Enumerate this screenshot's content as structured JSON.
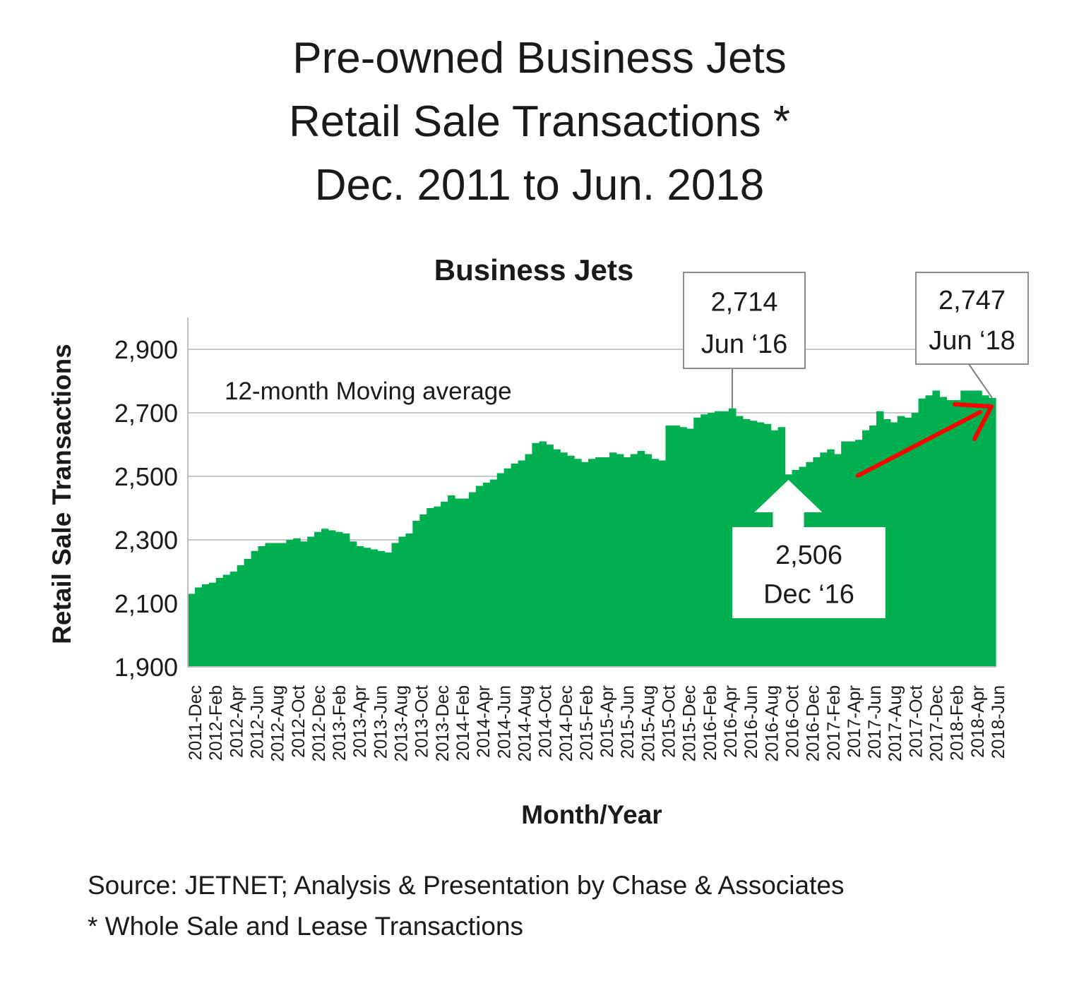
{
  "title_lines": [
    "Pre-owned Business Jets",
    "Retail Sale Transactions *",
    "Dec. 2011 to Jun. 2018"
  ],
  "footer": {
    "source": "Source: JETNET; Analysis & Presentation by Chase & Associates",
    "note": "* Whole Sale and Lease Transactions"
  },
  "chart_data": {
    "type": "area",
    "title": "Business Jets",
    "subtitle": "12-month Moving average",
    "xlabel": "Month/Year",
    "ylabel": "Retail Sale Transactions",
    "ylim": [
      1900,
      3000
    ],
    "yticks": [
      1900,
      2100,
      2300,
      2500,
      2700,
      2900
    ],
    "ytick_labels": [
      "1,900",
      "2,100",
      "2,300",
      "2,500",
      "2,700",
      "2,900"
    ],
    "grid": true,
    "fill_color": "#00b050",
    "tick_labels": [
      "2011-Dec",
      "2012-Feb",
      "2012-Apr",
      "2012-Jun",
      "2012-Aug",
      "2012-Oct",
      "2012-Dec",
      "2013-Feb",
      "2013-Apr",
      "2013-Jun",
      "2013-Aug",
      "2013-Oct",
      "2013-Dec",
      "2014-Feb",
      "2014-Apr",
      "2014-Jun",
      "2014-Aug",
      "2014-Oct",
      "2014-Dec",
      "2015-Feb",
      "2015-Apr",
      "2015-Jun",
      "2015-Aug",
      "2015-Oct",
      "2015-Dec",
      "2016-Feb",
      "2016-Apr",
      "2016-Jun",
      "2016-Aug",
      "2016-Oct",
      "2016-Dec",
      "2017-Feb",
      "2017-Apr",
      "2017-Jun",
      "2017-Aug",
      "2017-Oct",
      "2017-Dec",
      "2018-Feb",
      "2018-Apr",
      "2018-Jun"
    ],
    "values": [
      2130,
      2150,
      2160,
      2165,
      2180,
      2190,
      2200,
      2220,
      2240,
      2265,
      2280,
      2290,
      2290,
      2290,
      2300,
      2305,
      2295,
      2310,
      2325,
      2335,
      2330,
      2325,
      2320,
      2295,
      2280,
      2275,
      2270,
      2265,
      2260,
      2290,
      2310,
      2320,
      2360,
      2380,
      2400,
      2405,
      2420,
      2440,
      2430,
      2430,
      2450,
      2470,
      2480,
      2490,
      2510,
      2525,
      2540,
      2550,
      2570,
      2605,
      2610,
      2600,
      2585,
      2575,
      2565,
      2555,
      2545,
      2555,
      2560,
      2560,
      2575,
      2570,
      2560,
      2570,
      2580,
      2570,
      2555,
      2550,
      2660,
      2660,
      2655,
      2650,
      2685,
      2695,
      2700,
      2705,
      2705,
      2714,
      2690,
      2680,
      2675,
      2670,
      2665,
      2645,
      2655,
      2506,
      2520,
      2530,
      2545,
      2560,
      2575,
      2585,
      2570,
      2610,
      2610,
      2615,
      2645,
      2660,
      2705,
      2680,
      2670,
      2690,
      2685,
      2700,
      2745,
      2755,
      2770,
      2750,
      2740,
      2740,
      2770,
      2770,
      2770,
      2755,
      2747
    ],
    "annotations": [
      {
        "value": "2,714",
        "label": "Jun ‘16",
        "index": 77
      },
      {
        "value": "2,747",
        "label": "Jun ‘18",
        "index": 114
      },
      {
        "value": "2,506",
        "label": "Dec ‘16",
        "index": 85
      }
    ],
    "arrow_color": "#ff0000"
  }
}
